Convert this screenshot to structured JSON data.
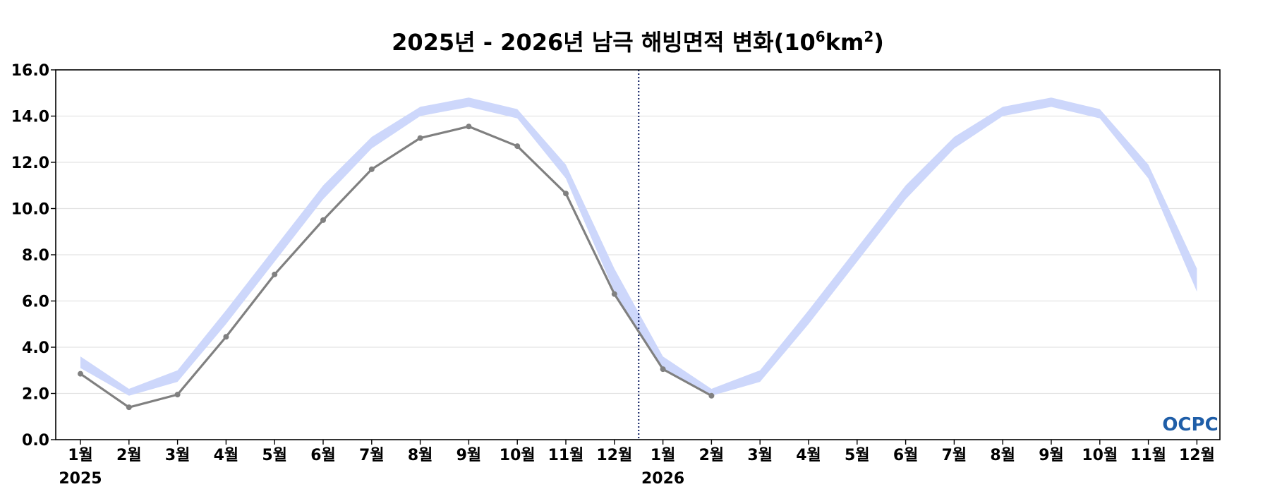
{
  "chart_data": {
    "type": "line",
    "title": {
      "main": "2025년 - 2026년 남극 해빙면적 변화(10",
      "sup1": "6",
      "mid": "km",
      "sup2": "2",
      "end": ")"
    },
    "xlabel": "",
    "ylabel": "",
    "ylim": [
      0,
      16
    ],
    "y_ticks": [
      0,
      2,
      4,
      6,
      8,
      10,
      12,
      14,
      16
    ],
    "y_tick_labels": [
      "0.0",
      "2.0",
      "4.0",
      "6.0",
      "8.0",
      "10.0",
      "12.0",
      "14.0",
      "16.0"
    ],
    "x": [
      "2025-01",
      "2025-02",
      "2025-03",
      "2025-04",
      "2025-05",
      "2025-06",
      "2025-07",
      "2025-08",
      "2025-09",
      "2025-10",
      "2025-11",
      "2025-12",
      "2026-01",
      "2026-02",
      "2026-03",
      "2026-04",
      "2026-05",
      "2026-06",
      "2026-07",
      "2026-08",
      "2026-09",
      "2026-10",
      "2026-11",
      "2026-12"
    ],
    "x_tick_labels": [
      "1월",
      "2월",
      "3월",
      "4월",
      "5월",
      "6월",
      "7월",
      "8월",
      "9월",
      "10월",
      "11월",
      "12월",
      "1월",
      "2월",
      "3월",
      "4월",
      "5월",
      "6월",
      "7월",
      "8월",
      "9월",
      "10월",
      "11월",
      "12월"
    ],
    "year_labels": [
      "2025",
      "2026"
    ],
    "divider_between": [
      "2025-12",
      "2026-01"
    ],
    "grid": "horizontal",
    "series": [
      {
        "style": "band",
        "color": "#cdd7fb",
        "upper": [
          3.6,
          2.2,
          3.0,
          5.6,
          8.3,
          11.0,
          13.1,
          14.4,
          14.8,
          14.3,
          11.9,
          7.4,
          3.6,
          2.2,
          3.0,
          5.6,
          8.3,
          11.0,
          13.1,
          14.4,
          14.8,
          14.3,
          11.9,
          7.4
        ],
        "lower": [
          3.1,
          1.9,
          2.5,
          5.0,
          7.7,
          10.4,
          12.6,
          14.0,
          14.4,
          13.9,
          11.3,
          6.4,
          3.1,
          1.9,
          2.5,
          5.0,
          7.7,
          10.4,
          12.6,
          14.0,
          14.4,
          13.9,
          11.3,
          6.4
        ]
      },
      {
        "style": "line-markers",
        "color": "#808080",
        "values": [
          2.85,
          1.4,
          1.95,
          4.45,
          7.15,
          9.5,
          11.7,
          13.05,
          13.55,
          12.7,
          10.65,
          6.3,
          3.05,
          1.9,
          null,
          null,
          null,
          null,
          null,
          null,
          null,
          null,
          null,
          null
        ]
      }
    ],
    "logo": "OCPC"
  }
}
